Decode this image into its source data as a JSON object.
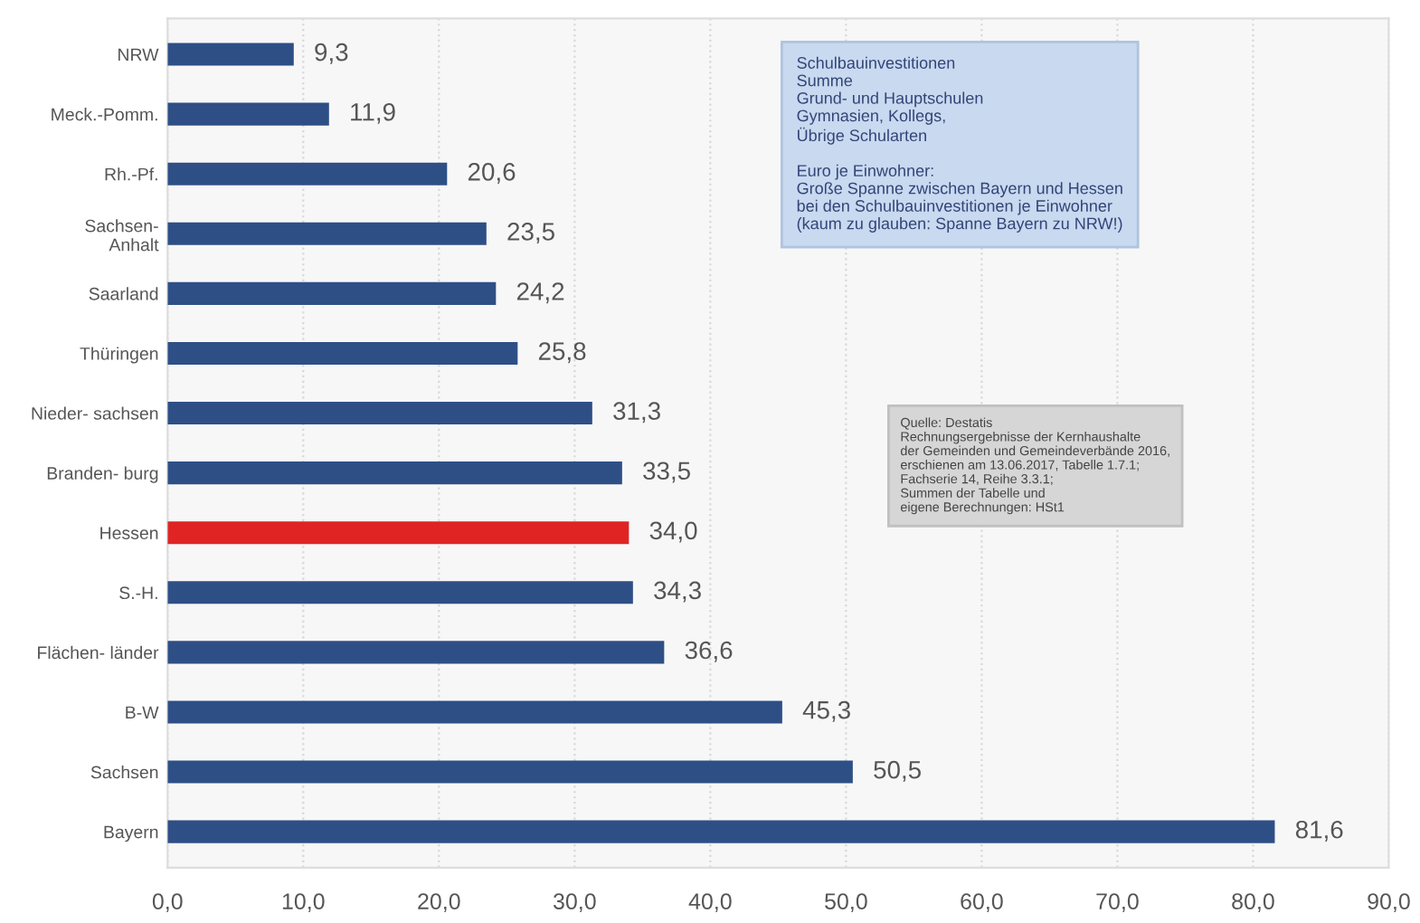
{
  "chart_data": {
    "type": "bar",
    "orientation": "horizontal",
    "categories": [
      "NRW",
      "Meck.-Pomm.",
      "Rh.-Pf.",
      "Sachsen-\nAnhalt",
      "Saarland",
      "Thüringen",
      "Nieder- sachsen",
      "Branden- burg",
      "Hessen",
      "S.-H.",
      "Flächen- länder",
      "B-W",
      "Sachsen",
      "Bayern"
    ],
    "values": [
      9.3,
      11.9,
      20.6,
      23.5,
      24.2,
      25.8,
      31.3,
      33.5,
      34.0,
      34.3,
      36.6,
      45.3,
      50.5,
      81.6
    ],
    "value_labels": [
      "9,3",
      "11,9",
      "20,6",
      "23,5",
      "24,2",
      "25,8",
      "31,3",
      "33,5",
      "34,0",
      "34,3",
      "36,6",
      "45,3",
      "50,5",
      "81,6"
    ],
    "colors": [
      "#2e4f86",
      "#2e4f86",
      "#2e4f86",
      "#2e4f86",
      "#2e4f86",
      "#2e4f86",
      "#2e4f86",
      "#2e4f86",
      "#e02424",
      "#2e4f86",
      "#2e4f86",
      "#2e4f86",
      "#2e4f86",
      "#2e4f86"
    ],
    "xlim": [
      0,
      90
    ],
    "xticks": [
      {
        "value": 0,
        "label": "0,0"
      },
      {
        "value": 10,
        "label": "10,0"
      },
      {
        "value": 20,
        "label": "20,0"
      },
      {
        "value": 30,
        "label": "30,0"
      },
      {
        "value": 40,
        "label": "40,0"
      },
      {
        "value": 50,
        "label": "50,0"
      },
      {
        "value": 60,
        "label": "60,0"
      },
      {
        "value": 70,
        "label": "70,0"
      },
      {
        "value": 80,
        "label": "80,0"
      },
      {
        "value": 90,
        "label": "90,0"
      }
    ],
    "grid": "x",
    "annotations": [
      "Schulbauinvestitionen\nSumme\nGrund- und Hauptschulen\nGymnasien, Kollegs,\nÜbrige Schularten\n\nEuro je Einwohner:\nGroße Spanne zwischen Bayern und Hessen\nbei den Schulbauinvestitionen je Einwohner\n(kaum zu glauben: Spanne Bayern zu NRW!)",
      "Quelle: Destatis\nRechnungsergebnisse der Kernhaushalte\nder Gemeinden und Gemeindeverbände 2016,\nerschienen am 13.06.2017, Tabelle 1.7.1;\nFachserie 14, Reihe 3.3.1;\nSummen der Tabelle und\neigene Berechnungen: HSt1"
    ]
  }
}
